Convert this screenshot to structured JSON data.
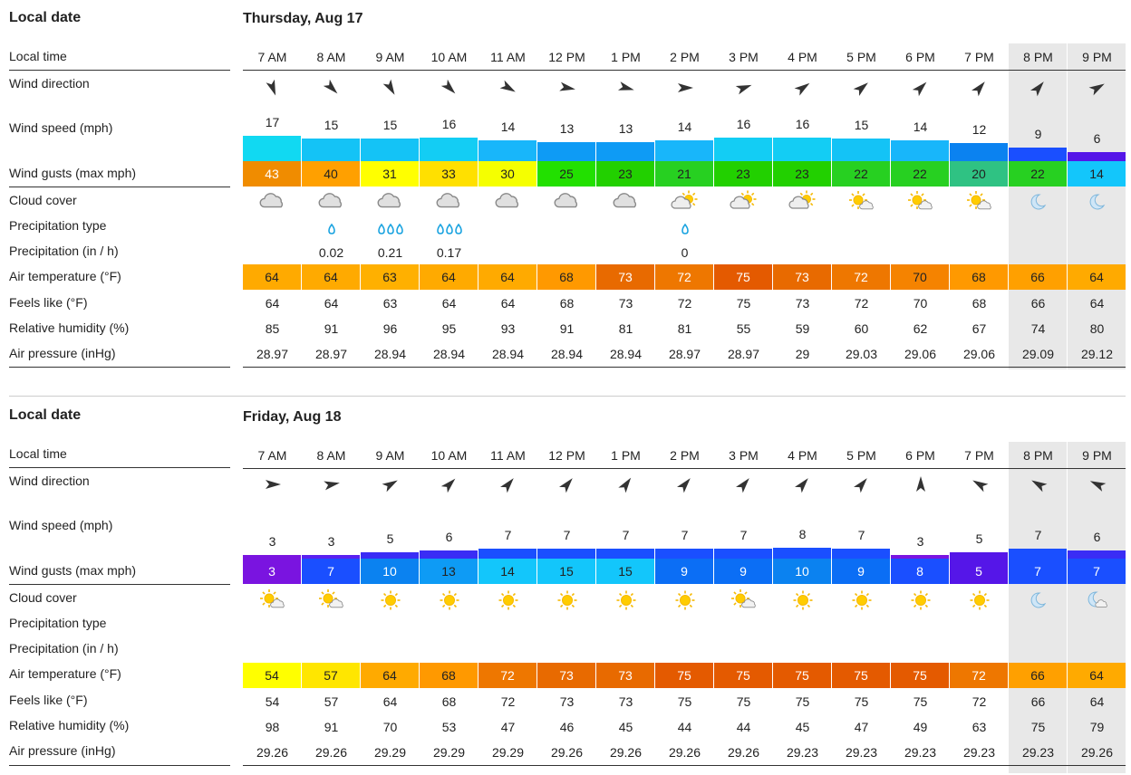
{
  "labels": {
    "local_date": "Local date",
    "local_time": "Local time",
    "wind_direction": "Wind direction",
    "wind_speed": "Wind speed (mph)",
    "wind_gusts": "Wind gusts (max mph)",
    "cloud_cover": "Cloud cover",
    "precip_type": "Precipitation type",
    "precip": "Precipitation (in / h)",
    "air_temp": "Air temperature (°F)",
    "feels_like": "Feels like (°F)",
    "humidity": "Relative humidity (%)",
    "pressure": "Air pressure (inHg)"
  },
  "colors": {
    "night_bg": "#e8e8e8",
    "arrow": "#333333",
    "rain": "#1aa3e0"
  },
  "days": [
    {
      "title": "Thursday, Aug 17",
      "times": [
        "7 AM",
        "8 AM",
        "9 AM",
        "10 AM",
        "11 AM",
        "12 PM",
        "1 PM",
        "2 PM",
        "3 PM",
        "4 PM",
        "5 PM",
        "6 PM",
        "7 PM",
        "8 PM",
        "9 PM"
      ],
      "night": [
        false,
        false,
        false,
        false,
        false,
        false,
        false,
        false,
        false,
        false,
        false,
        false,
        false,
        true,
        true
      ],
      "wind_dir_deg": [
        160,
        135,
        150,
        135,
        120,
        100,
        105,
        90,
        70,
        55,
        50,
        45,
        40,
        40,
        60
      ],
      "wind_speed": [
        "17",
        "15",
        "15",
        "16",
        "14",
        "13",
        "13",
        "14",
        "16",
        "16",
        "15",
        "14",
        "12",
        "9",
        "6"
      ],
      "wind_speed_level": [
        17,
        15,
        15,
        16,
        14,
        13,
        13,
        14,
        16,
        16,
        15,
        14,
        12,
        9,
        6
      ],
      "wind_speed_color": [
        "#11d9f2",
        "#14c3f6",
        "#14c3f6",
        "#13cdf4",
        "#18b6fa",
        "#0e9bf5",
        "#0e9bf5",
        "#18b6fa",
        "#13cdf4",
        "#13cdf4",
        "#14c3f6",
        "#18b6fa",
        "#0b82f0",
        "#1a4fff",
        "#5516e8"
      ],
      "gusts": [
        "43",
        "40",
        "31",
        "33",
        "30",
        "25",
        "23",
        "21",
        "23",
        "23",
        "22",
        "22",
        "20",
        "22",
        "14"
      ],
      "gust_color": [
        "#f08c00",
        "#ffa000",
        "#ffff00",
        "#ffe000",
        "#f5ff00",
        "#22e000",
        "#22d000",
        "#27d021",
        "#22d000",
        "#22d000",
        "#27d021",
        "#27d021",
        "#2fc283",
        "#27d021",
        "#13c6fb"
      ],
      "cloud": [
        "cloudy",
        "cloudy",
        "cloudy",
        "cloudy",
        "cloudy",
        "cloudy",
        "cloudy",
        "partly-sunny",
        "partly-sunny",
        "partly-sunny",
        "sun-cloud",
        "sun-cloud",
        "sun-cloud",
        "moon",
        "moon"
      ],
      "precip_type": [
        "",
        "rain1",
        "rain3",
        "rain3",
        "",
        "",
        "",
        "rain1",
        "",
        "",
        "",
        "",
        "",
        "",
        ""
      ],
      "precip": [
        "",
        "0.02",
        "0.21",
        "0.17",
        "",
        "",
        "",
        "0",
        "",
        "",
        "",
        "",
        "",
        "",
        ""
      ],
      "temp": [
        "64",
        "64",
        "63",
        "64",
        "64",
        "68",
        "73",
        "72",
        "75",
        "73",
        "72",
        "70",
        "68",
        "66",
        "64"
      ],
      "temp_color": [
        "#ffaa00",
        "#ffaa00",
        "#ffb000",
        "#ffaa00",
        "#ffaa00",
        "#ff9900",
        "#e86a00",
        "#ee7700",
        "#e45a00",
        "#e86a00",
        "#ee7700",
        "#f58300",
        "#ff9900",
        "#ffa000",
        "#ffaa00"
      ],
      "feels": [
        "64",
        "64",
        "63",
        "64",
        "64",
        "68",
        "73",
        "72",
        "75",
        "73",
        "72",
        "70",
        "68",
        "66",
        "64"
      ],
      "humidity": [
        "85",
        "91",
        "96",
        "95",
        "93",
        "91",
        "81",
        "81",
        "55",
        "59",
        "60",
        "62",
        "67",
        "74",
        "80"
      ],
      "pressure": [
        "28.97",
        "28.97",
        "28.94",
        "28.94",
        "28.94",
        "28.94",
        "28.94",
        "28.97",
        "28.97",
        "29",
        "29.03",
        "29.06",
        "29.06",
        "29.09",
        "29.12"
      ]
    },
    {
      "title": "Friday, Aug 18",
      "times": [
        "7 AM",
        "8 AM",
        "9 AM",
        "10 AM",
        "11 AM",
        "12 PM",
        "1 PM",
        "2 PM",
        "3 PM",
        "4 PM",
        "5 PM",
        "6 PM",
        "7 PM",
        "8 PM",
        "9 PM"
      ],
      "night": [
        false,
        false,
        false,
        false,
        false,
        false,
        false,
        false,
        false,
        false,
        false,
        false,
        false,
        true,
        true
      ],
      "wind_dir_deg": [
        90,
        80,
        60,
        45,
        40,
        40,
        35,
        40,
        40,
        40,
        40,
        0,
        -60,
        -60,
        -65
      ],
      "wind_speed": [
        "3",
        "3",
        "5",
        "6",
        "7",
        "7",
        "7",
        "7",
        "7",
        "8",
        "7",
        "3",
        "5",
        "7",
        "6"
      ],
      "wind_speed_level": [
        3,
        3,
        5,
        6,
        7,
        7,
        7,
        7,
        7,
        8,
        7,
        3,
        5,
        7,
        6
      ],
      "wind_speed_color": [
        "#7a14e0",
        "#5a20f0",
        "#3a2cf5",
        "#3a2cf5",
        "#1a4fff",
        "#1a4fff",
        "#1a4fff",
        "#1a4fff",
        "#1a4fff",
        "#1a4fff",
        "#1a4fff",
        "#7a14e0",
        "#5516e8",
        "#1a4fff",
        "#3a2cf5"
      ],
      "gusts": [
        "3",
        "7",
        "10",
        "13",
        "14",
        "15",
        "15",
        "9",
        "9",
        "10",
        "9",
        "8",
        "5",
        "7",
        "7"
      ],
      "gust_color": [
        "#7a14e0",
        "#1a4fff",
        "#0b82f0",
        "#0e9bf5",
        "#13c6fb",
        "#13c6fb",
        "#13c6fb",
        "#0b6ef5",
        "#0b6ef5",
        "#0b82f0",
        "#0b6ef5",
        "#1a4fff",
        "#5516e8",
        "#1a4fff",
        "#1a4fff"
      ],
      "cloud": [
        "sun-cloud",
        "sun-cloud",
        "sun",
        "sun",
        "sun",
        "sun",
        "sun",
        "sun",
        "sun-cloud",
        "sun",
        "sun",
        "sun",
        "sun",
        "moon",
        "moon-cloud"
      ],
      "precip_type": [
        "",
        "",
        "",
        "",
        "",
        "",
        "",
        "",
        "",
        "",
        "",
        "",
        "",
        "",
        ""
      ],
      "precip": [
        "",
        "",
        "",
        "",
        "",
        "",
        "",
        "",
        "",
        "",
        "",
        "",
        "",
        "",
        ""
      ],
      "temp": [
        "54",
        "57",
        "64",
        "68",
        "72",
        "73",
        "73",
        "75",
        "75",
        "75",
        "75",
        "75",
        "72",
        "66",
        "64"
      ],
      "temp_color": [
        "#ffff00",
        "#ffe600",
        "#ffaa00",
        "#ff9900",
        "#ee7700",
        "#e86a00",
        "#e86a00",
        "#e45a00",
        "#e45a00",
        "#e45a00",
        "#e45a00",
        "#e45a00",
        "#ee7700",
        "#ffa000",
        "#ffaa00"
      ],
      "feels": [
        "54",
        "57",
        "64",
        "68",
        "72",
        "73",
        "73",
        "75",
        "75",
        "75",
        "75",
        "75",
        "72",
        "66",
        "64"
      ],
      "humidity": [
        "98",
        "91",
        "70",
        "53",
        "47",
        "46",
        "45",
        "44",
        "44",
        "45",
        "47",
        "49",
        "63",
        "75",
        "79"
      ],
      "pressure": [
        "29.26",
        "29.26",
        "29.29",
        "29.29",
        "29.29",
        "29.26",
        "29.26",
        "29.26",
        "29.26",
        "29.23",
        "29.23",
        "29.23",
        "29.23",
        "29.23",
        "29.26"
      ]
    }
  ]
}
